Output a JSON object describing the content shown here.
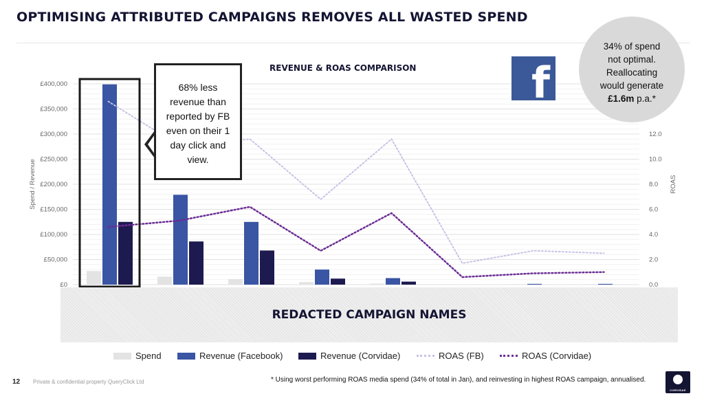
{
  "slide": {
    "title": "OPTIMISING ATTRIBUTED CAMPAIGNS REMOVES ALL WASTED SPEND",
    "page_number": "12",
    "footer_text": "Private & confidential property QueryClick Ltd",
    "footnote": "* Using worst performing ROAS media spend (34% of total in Jan), and reinvesting in highest ROAS campaign, annualised.",
    "brand_label": "CORVIDAE"
  },
  "callout": {
    "text": "68% less revenue than reported by FB even on their 1 day click and view."
  },
  "circle": {
    "line1": "34% of spend",
    "line2": "not optimal.",
    "line3": "Reallocating",
    "line4": "would generate",
    "amount": "£1.6m",
    "suffix": " p.a.*"
  },
  "redacted_label": "REDACTED CAMPAIGN NAMES",
  "facebook_logo": {
    "icon": "facebook-f-icon",
    "glyph": "f",
    "color": "#3b5998"
  },
  "colors": {
    "spend": "#e3e3e3",
    "revenue_fb": "#3955a3",
    "revenue_corvidae": "#1d1a4f",
    "roas_fb": "#c5c3e6",
    "roas_corvidae": "#6b2d94"
  },
  "chart_data": {
    "type": "bar",
    "title": "REVENUE & ROAS COMPARISON",
    "ylabel": "Spend / Revenue",
    "y2label": "ROAS",
    "ylim": [
      0,
      400000
    ],
    "y2lim": [
      0,
      12
    ],
    "y_ticks": [
      "£0",
      "£50,000",
      "£100,000",
      "£150,000",
      "£200,000",
      "£250,000",
      "£300,000",
      "£350,000",
      "£400,000"
    ],
    "y2_ticks": [
      "0.0",
      "2.0",
      "4.0",
      "6.0",
      "8.0",
      "10.0",
      "12.0"
    ],
    "categories": [
      "",
      "",
      "",
      "",
      "",
      "",
      "",
      ""
    ],
    "series": [
      {
        "name": "Spend",
        "kind": "bar",
        "values": [
          27000,
          16000,
          11000,
          5000,
          2000,
          500,
          1000,
          1000
        ]
      },
      {
        "name": "Revenue (Facebook)",
        "kind": "bar",
        "values": [
          399000,
          179000,
          125000,
          30000,
          13000,
          0,
          1500,
          1500
        ]
      },
      {
        "name": "Revenue (Corvidae)",
        "kind": "bar",
        "values": [
          125000,
          86000,
          68000,
          12000,
          6000,
          0,
          0,
          0
        ]
      },
      {
        "name": "ROAS (FB)",
        "kind": "line",
        "axis": "secondary",
        "values": [
          14.6,
          11.1,
          11.6,
          6.8,
          11.6,
          1.7,
          2.7,
          2.5
        ]
      },
      {
        "name": "ROAS (Corvidae)",
        "kind": "line",
        "axis": "secondary",
        "values": [
          4.6,
          5.1,
          6.2,
          2.7,
          5.7,
          0.6,
          0.9,
          1.0
        ]
      }
    ],
    "legend_position": "bottom",
    "grid": true,
    "highlight_category_index": 0
  }
}
